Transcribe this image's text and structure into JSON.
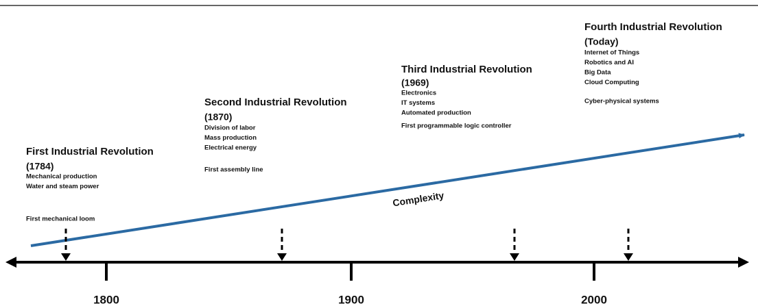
{
  "axis_labels": [
    "1800",
    "1900",
    "2000"
  ],
  "trend_label": "Complexity",
  "revolutions": [
    {
      "title": "First Industrial Revolution",
      "year": "(1784)",
      "items": [
        "Mechanical production",
        "Water and steam power"
      ],
      "note": "First mechanical loom"
    },
    {
      "title": "Second Industrial Revolution",
      "year": "(1870)",
      "items": [
        "Division of labor",
        "Mass production",
        "Electrical energy"
      ],
      "note": "First assembly line"
    },
    {
      "title": "Third Industrial Revolution",
      "year": "(1969)",
      "items": [
        "Electronics",
        "IT systems",
        "Automated production"
      ],
      "note": "First programmable logic controller"
    },
    {
      "title": "Fourth Industrial Revolution",
      "year": "(Today)",
      "items": [
        "Internet of Things",
        "Robotics and AI",
        "Big Data",
        "Cloud Computing"
      ],
      "note": "Cyber-physical systems"
    }
  ]
}
